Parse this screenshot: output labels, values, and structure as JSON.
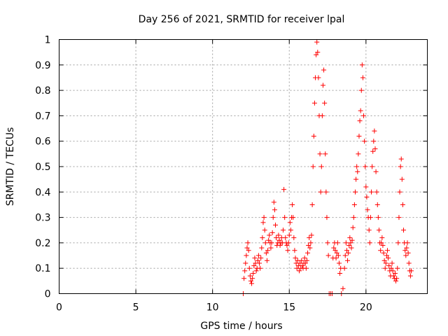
{
  "chart_data": {
    "type": "scatter",
    "title": "Day 256 of 2021, SRMTID for receiver lpal",
    "xlabel": "GPS time / hours",
    "ylabel": "SRMTID / TECUs",
    "xlim": [
      0,
      24
    ],
    "ylim": [
      0,
      1
    ],
    "xticks": [
      0,
      5,
      10,
      15,
      20
    ],
    "xtick_labels": [
      "0",
      "5",
      "10",
      "15",
      "20"
    ],
    "yticks": [
      0,
      0.1,
      0.2,
      0.3,
      0.4,
      0.5,
      0.6,
      0.7,
      0.8,
      0.9,
      1
    ],
    "ytick_labels": [
      "0",
      "0.1",
      "0.2",
      "0.3",
      "0.4",
      "0.5",
      "0.6",
      "0.7",
      "0.8",
      "0.9",
      "1"
    ],
    "grid": true,
    "marker": "+",
    "color": "#ff0000",
    "series": [
      {
        "name": "SRMTID",
        "points": [
          [
            12.0,
            0.0
          ],
          [
            12.05,
            0.06
          ],
          [
            12.1,
            0.09
          ],
          [
            12.15,
            0.12
          ],
          [
            12.2,
            0.15
          ],
          [
            12.25,
            0.18
          ],
          [
            12.3,
            0.2
          ],
          [
            12.35,
            0.17
          ],
          [
            12.4,
            0.1
          ],
          [
            12.45,
            0.07
          ],
          [
            12.5,
            0.05
          ],
          [
            12.55,
            0.04
          ],
          [
            12.6,
            0.06
          ],
          [
            12.65,
            0.08
          ],
          [
            12.7,
            0.11
          ],
          [
            12.75,
            0.14
          ],
          [
            12.8,
            0.12
          ],
          [
            12.85,
            0.09
          ],
          [
            12.9,
            0.1
          ],
          [
            12.95,
            0.13
          ],
          [
            13.0,
            0.15
          ],
          [
            13.05,
            0.12
          ],
          [
            13.1,
            0.1
          ],
          [
            13.15,
            0.14
          ],
          [
            13.2,
            0.18
          ],
          [
            13.25,
            0.22
          ],
          [
            13.3,
            0.28
          ],
          [
            13.35,
            0.3
          ],
          [
            13.4,
            0.25
          ],
          [
            13.45,
            0.2
          ],
          [
            13.5,
            0.16
          ],
          [
            13.55,
            0.13
          ],
          [
            13.6,
            0.17
          ],
          [
            13.65,
            0.21
          ],
          [
            13.7,
            0.23
          ],
          [
            13.75,
            0.2
          ],
          [
            13.8,
            0.18
          ],
          [
            13.85,
            0.2
          ],
          [
            13.9,
            0.24
          ],
          [
            13.95,
            0.3
          ],
          [
            14.0,
            0.36
          ],
          [
            14.05,
            0.33
          ],
          [
            14.1,
            0.27
          ],
          [
            14.15,
            0.22
          ],
          [
            14.2,
            0.19
          ],
          [
            14.25,
            0.2
          ],
          [
            14.3,
            0.23
          ],
          [
            14.35,
            0.21
          ],
          [
            14.4,
            0.19
          ],
          [
            14.45,
            0.2
          ],
          [
            14.5,
            0.22
          ],
          [
            14.55,
            0.2
          ],
          [
            14.6,
            0.25
          ],
          [
            14.65,
            0.41
          ],
          [
            14.7,
            0.3
          ],
          [
            14.75,
            0.22
          ],
          [
            14.8,
            0.2
          ],
          [
            14.85,
            0.19
          ],
          [
            14.9,
            0.17
          ],
          [
            14.95,
            0.2
          ],
          [
            15.0,
            0.23
          ],
          [
            15.05,
            0.28
          ],
          [
            15.1,
            0.25
          ],
          [
            15.15,
            0.3
          ],
          [
            15.2,
            0.35
          ],
          [
            15.25,
            0.3
          ],
          [
            15.3,
            0.22
          ],
          [
            15.35,
            0.17
          ],
          [
            15.4,
            0.14
          ],
          [
            15.45,
            0.12
          ],
          [
            15.5,
            0.1
          ],
          [
            15.55,
            0.13
          ],
          [
            15.6,
            0.11
          ],
          [
            15.65,
            0.09
          ],
          [
            15.7,
            0.12
          ],
          [
            15.75,
            0.1
          ],
          [
            15.8,
            0.13
          ],
          [
            15.85,
            0.11
          ],
          [
            15.9,
            0.1
          ],
          [
            15.95,
            0.12
          ],
          [
            16.0,
            0.14
          ],
          [
            16.05,
            0.12
          ],
          [
            16.1,
            0.1
          ],
          [
            16.15,
            0.13
          ],
          [
            16.2,
            0.16
          ],
          [
            16.25,
            0.19
          ],
          [
            16.3,
            0.22
          ],
          [
            16.35,
            0.18
          ],
          [
            16.4,
            0.2
          ],
          [
            16.45,
            0.23
          ],
          [
            16.5,
            0.35
          ],
          [
            16.55,
            0.5
          ],
          [
            16.6,
            0.62
          ],
          [
            16.65,
            0.75
          ],
          [
            16.7,
            0.85
          ],
          [
            16.75,
            0.94
          ],
          [
            16.8,
            0.99
          ],
          [
            16.85,
            0.95
          ],
          [
            16.9,
            0.85
          ],
          [
            16.95,
            0.7
          ],
          [
            17.0,
            0.55
          ],
          [
            17.05,
            0.4
          ],
          [
            17.1,
            0.5
          ],
          [
            17.15,
            0.7
          ],
          [
            17.2,
            0.82
          ],
          [
            17.25,
            0.88
          ],
          [
            17.3,
            0.75
          ],
          [
            17.35,
            0.55
          ],
          [
            17.4,
            0.4
          ],
          [
            17.45,
            0.3
          ],
          [
            17.5,
            0.2
          ],
          [
            17.55,
            0.15
          ],
          [
            17.6,
            0.0
          ],
          [
            17.7,
            0.0
          ],
          [
            17.8,
            0.0
          ],
          [
            17.85,
            0.14
          ],
          [
            17.9,
            0.18
          ],
          [
            17.95,
            0.2
          ],
          [
            18.0,
            0.17
          ],
          [
            18.05,
            0.14
          ],
          [
            18.1,
            0.16
          ],
          [
            18.15,
            0.2
          ],
          [
            18.2,
            0.15
          ],
          [
            18.25,
            0.12
          ],
          [
            18.3,
            0.08
          ],
          [
            18.35,
            0.1
          ],
          [
            18.4,
            0.0
          ],
          [
            18.5,
            0.02
          ],
          [
            18.6,
            0.1
          ],
          [
            18.65,
            0.15
          ],
          [
            18.7,
            0.2
          ],
          [
            18.75,
            0.17
          ],
          [
            18.8,
            0.13
          ],
          [
            18.85,
            0.16
          ],
          [
            18.9,
            0.19
          ],
          [
            18.95,
            0.22
          ],
          [
            19.0,
            0.2
          ],
          [
            19.05,
            0.18
          ],
          [
            19.1,
            0.21
          ],
          [
            19.15,
            0.26
          ],
          [
            19.2,
            0.3
          ],
          [
            19.25,
            0.35
          ],
          [
            19.3,
            0.4
          ],
          [
            19.35,
            0.45
          ],
          [
            19.4,
            0.5
          ],
          [
            19.45,
            0.48
          ],
          [
            19.5,
            0.55
          ],
          [
            19.55,
            0.62
          ],
          [
            19.6,
            0.68
          ],
          [
            19.65,
            0.72
          ],
          [
            19.7,
            0.8
          ],
          [
            19.75,
            0.9
          ],
          [
            19.8,
            0.85
          ],
          [
            19.85,
            0.7
          ],
          [
            19.9,
            0.6
          ],
          [
            19.95,
            0.5
          ],
          [
            20.0,
            0.42
          ],
          [
            20.05,
            0.38
          ],
          [
            20.1,
            0.33
          ],
          [
            20.15,
            0.3
          ],
          [
            20.2,
            0.25
          ],
          [
            20.25,
            0.2
          ],
          [
            20.3,
            0.3
          ],
          [
            20.35,
            0.4
          ],
          [
            20.4,
            0.5
          ],
          [
            20.45,
            0.56
          ],
          [
            20.5,
            0.6
          ],
          [
            20.55,
            0.64
          ],
          [
            20.6,
            0.57
          ],
          [
            20.65,
            0.48
          ],
          [
            20.7,
            0.4
          ],
          [
            20.75,
            0.35
          ],
          [
            20.8,
            0.3
          ],
          [
            20.85,
            0.25
          ],
          [
            20.9,
            0.2
          ],
          [
            20.95,
            0.17
          ],
          [
            21.0,
            0.2
          ],
          [
            21.05,
            0.22
          ],
          [
            21.1,
            0.19
          ],
          [
            21.15,
            0.16
          ],
          [
            21.2,
            0.13
          ],
          [
            21.25,
            0.1
          ],
          [
            21.3,
            0.12
          ],
          [
            21.35,
            0.15
          ],
          [
            21.4,
            0.17
          ],
          [
            21.45,
            0.14
          ],
          [
            21.5,
            0.11
          ],
          [
            21.55,
            0.09
          ],
          [
            21.6,
            0.07
          ],
          [
            21.65,
            0.1
          ],
          [
            21.7,
            0.12
          ],
          [
            21.75,
            0.09
          ],
          [
            21.8,
            0.07
          ],
          [
            21.85,
            0.06
          ],
          [
            21.9,
            0.08
          ],
          [
            21.95,
            0.05
          ],
          [
            22.0,
            0.06
          ],
          [
            22.05,
            0.1
          ],
          [
            22.1,
            0.2
          ],
          [
            22.15,
            0.3
          ],
          [
            22.2,
            0.4
          ],
          [
            22.25,
            0.5
          ],
          [
            22.3,
            0.53
          ],
          [
            22.35,
            0.45
          ],
          [
            22.4,
            0.35
          ],
          [
            22.45,
            0.25
          ],
          [
            22.5,
            0.2
          ],
          [
            22.55,
            0.17
          ],
          [
            22.6,
            0.15
          ],
          [
            22.65,
            0.18
          ],
          [
            22.7,
            0.2
          ],
          [
            22.75,
            0.16
          ],
          [
            22.8,
            0.12
          ],
          [
            22.85,
            0.09
          ],
          [
            22.9,
            0.07
          ],
          [
            22.95,
            0.09
          ]
        ]
      }
    ]
  }
}
